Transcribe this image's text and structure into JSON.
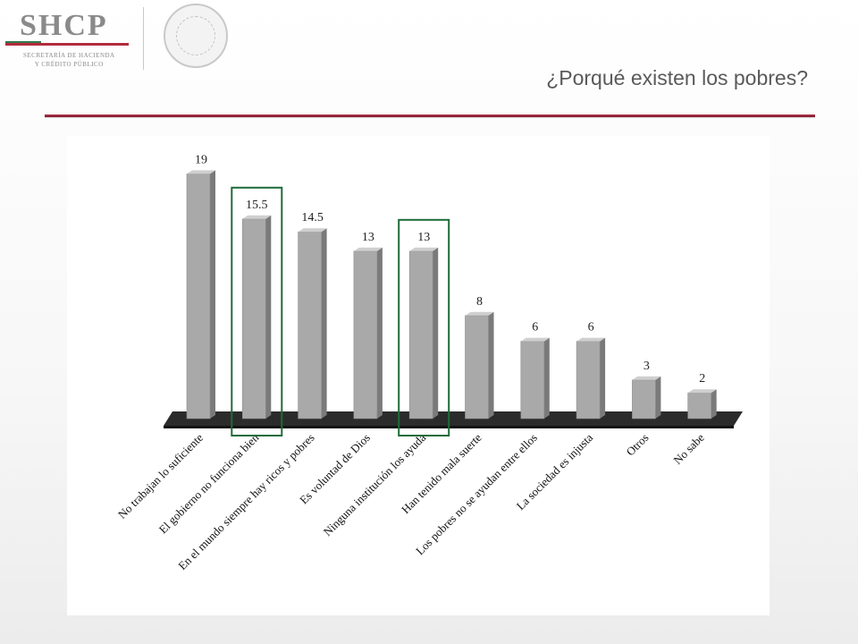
{
  "header": {
    "logo_text": "SHCP",
    "logo_sub_line1": "SECRETARÍA DE HACIENDA",
    "logo_sub_line2": "Y CRÉDITO PÚBLICO",
    "seal_text": "ESTADOS UNIDOS MEXICANOS",
    "title": "¿Porqué existen los pobres?"
  },
  "colors": {
    "accent_rule": "#9b2740",
    "bar_front": "#a9a9a9",
    "bar_side": "#7a7a7a",
    "bar_top": "#cfcfcf",
    "floor": "#2b2b2b",
    "highlight_box": "#1e6b3a"
  },
  "chart_data": {
    "type": "bar",
    "title": "",
    "xlabel": "",
    "ylabel": "",
    "categories": [
      "No trabajan lo suficiente",
      "El gobierno no funciona bien",
      "En el mundo siempre hay ricos y pobres",
      "Es voluntad de Dios",
      "Ninguna institución los ayuda",
      "Han tenido mala suerte",
      "Los pobres no se ayudan entre ellos",
      "La sociedad es injusta",
      "Otros",
      "No sabe"
    ],
    "values": [
      19,
      15.5,
      14.5,
      13,
      13,
      8,
      6,
      6,
      3,
      2
    ],
    "value_labels": [
      "19",
      "15.5",
      "14.5",
      "13",
      "13",
      "8",
      "6",
      "6",
      "3",
      "2"
    ],
    "highlighted_indices": [
      1,
      4
    ],
    "ylim": [
      0,
      20
    ],
    "grid": false,
    "legend": "none",
    "style": "3d"
  }
}
